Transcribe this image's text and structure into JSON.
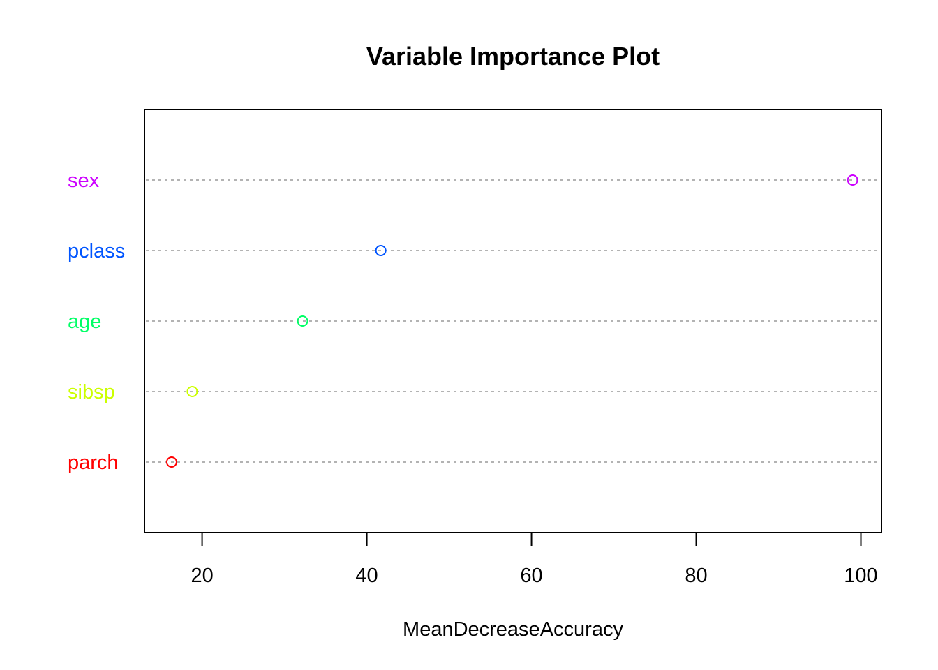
{
  "chart_data": {
    "type": "scatter",
    "title": "Variable Importance Plot",
    "xlabel": "MeanDecreaseAccuracy",
    "ylabel": "",
    "xlim": [
      13,
      102.5
    ],
    "x_ticks": [
      20,
      40,
      60,
      80,
      100
    ],
    "x_tick_labels": [
      "20",
      "40",
      "60",
      "80",
      "100"
    ],
    "grid": "dotted horizontal guide lines per category",
    "categories": [
      "sex",
      "pclass",
      "age",
      "sibsp",
      "parch"
    ],
    "values": [
      99.0,
      41.7,
      32.2,
      18.8,
      16.3
    ],
    "colors": [
      "#cc00ff",
      "#0055ff",
      "#00ff66",
      "#ccff00",
      "#ff0000"
    ]
  }
}
